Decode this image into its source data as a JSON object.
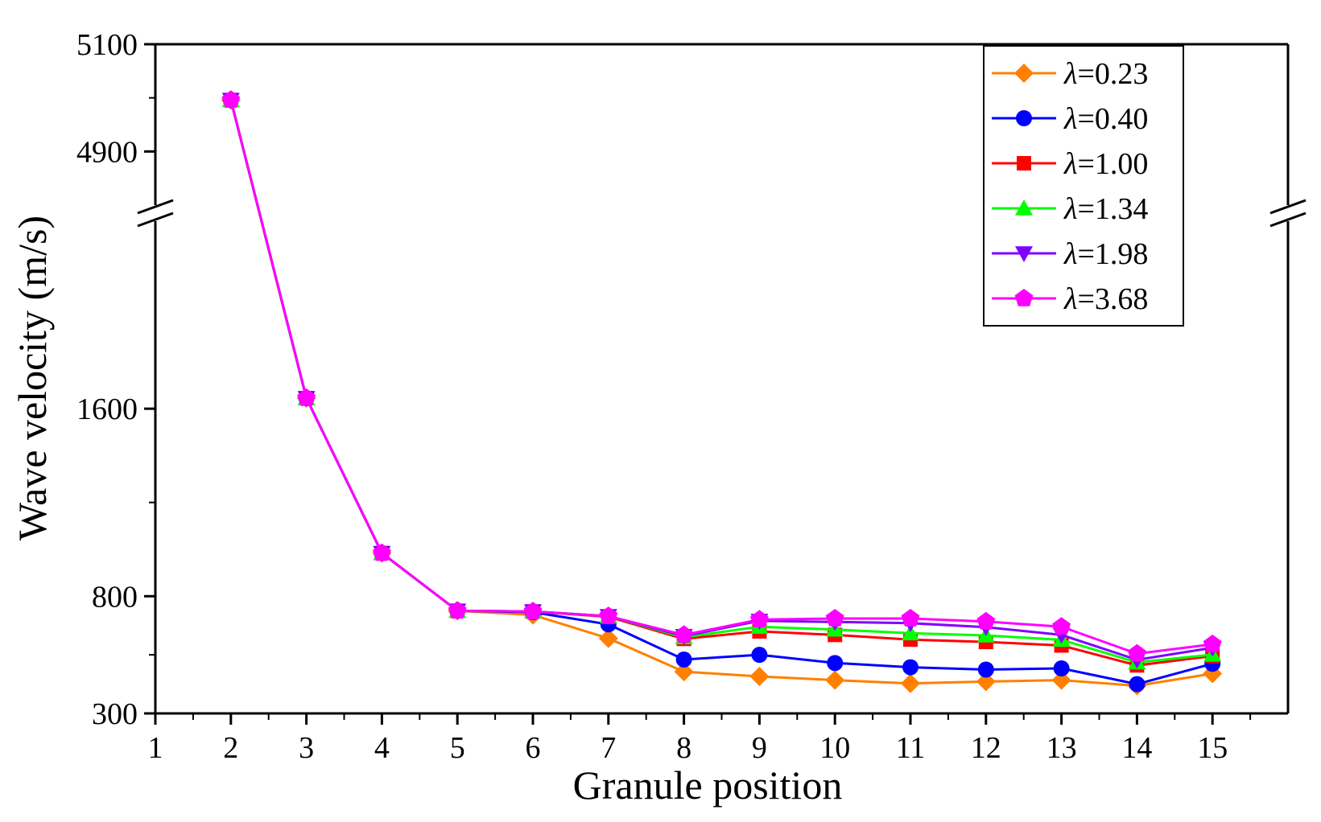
{
  "chart_data": {
    "type": "line",
    "xlabel": "Granule position",
    "ylabel": "Wave velocity (m/s)",
    "xlim": [
      1,
      16
    ],
    "x_ticks": [
      "1",
      "2",
      "3",
      "4",
      "5",
      "6",
      "7",
      "8",
      "9",
      "10",
      "11",
      "12",
      "13",
      "14",
      "15"
    ],
    "y_axis_break": true,
    "y_segments": [
      {
        "range": [
          300,
          2400
        ],
        "ticks": [
          "300",
          "800",
          "1600"
        ]
      },
      {
        "range": [
          4800,
          5100
        ],
        "ticks": [
          "4900",
          "5100"
        ]
      }
    ],
    "grid": false,
    "legend_position": "top-right",
    "x": [
      2,
      3,
      4,
      5,
      6,
      7,
      8,
      9,
      10,
      11,
      12,
      13,
      14,
      15
    ],
    "series": [
      {
        "name": "λ=0.23",
        "symbol": "λ",
        "value_text": "=0.23",
        "color": "#FF8000",
        "marker": "diamond",
        "values": [
          4996,
          1645,
          984,
          738,
          720,
          620,
          478,
          458,
          442,
          428,
          436,
          442,
          418,
          470
        ]
      },
      {
        "name": "λ=0.40",
        "symbol": "λ",
        "value_text": "=0.40",
        "color": "#0000FF",
        "marker": "circle",
        "values": [
          4996,
          1645,
          984,
          738,
          732,
          680,
          530,
          550,
          515,
          497,
          487,
          492,
          425,
          512
        ]
      },
      {
        "name": "λ=1.00",
        "symbol": "λ",
        "value_text": "=1.00",
        "color": "#FF0000",
        "marker": "square",
        "values": [
          4996,
          1645,
          984,
          738,
          735,
          712,
          618,
          650,
          635,
          615,
          605,
          590,
          505,
          545
        ]
      },
      {
        "name": "λ=1.34",
        "symbol": "λ",
        "value_text": "=1.34",
        "color": "#00FF00",
        "marker": "triangle-up",
        "values": [
          4996,
          1645,
          984,
          738,
          735,
          715,
          625,
          670,
          658,
          642,
          633,
          614,
          518,
          551
        ]
      },
      {
        "name": "λ=1.98",
        "symbol": "λ",
        "value_text": "=1.98",
        "color": "#8000FF",
        "marker": "triangle-down",
        "values": [
          4996,
          1645,
          984,
          738,
          735,
          715,
          630,
          695,
          690,
          685,
          668,
          635,
          529,
          580
        ]
      },
      {
        "name": "λ=3.68",
        "symbol": "λ",
        "value_text": "=3.68",
        "color": "#FF00FF",
        "marker": "pentagon",
        "values": [
          4996,
          1645,
          984,
          738,
          735,
          715,
          635,
          700,
          705,
          705,
          692,
          670,
          555,
          595
        ]
      }
    ]
  }
}
